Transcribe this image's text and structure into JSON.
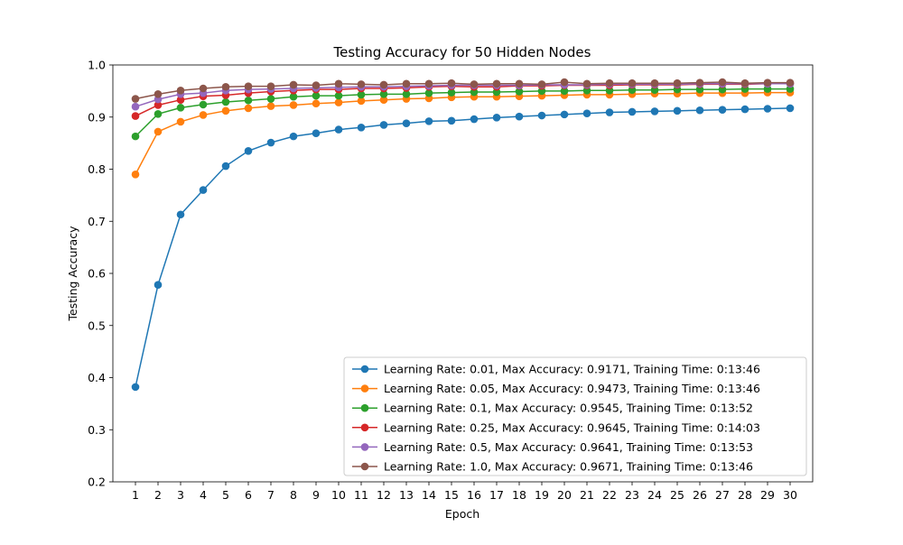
{
  "chart_data": {
    "type": "line",
    "title": "Testing Accuracy for 50 Hidden Nodes",
    "xlabel": "Epoch",
    "ylabel": "Testing Accuracy",
    "xlim": [
      0,
      31
    ],
    "ylim": [
      0.2,
      1.0
    ],
    "x": [
      1,
      2,
      3,
      4,
      5,
      6,
      7,
      8,
      9,
      10,
      11,
      12,
      13,
      14,
      15,
      16,
      17,
      18,
      19,
      20,
      21,
      22,
      23,
      24,
      25,
      26,
      27,
      28,
      29,
      30
    ],
    "x_ticks": [
      "1",
      "2",
      "3",
      "4",
      "5",
      "6",
      "7",
      "8",
      "9",
      "10",
      "11",
      "12",
      "13",
      "14",
      "15",
      "16",
      "17",
      "18",
      "19",
      "20",
      "21",
      "22",
      "23",
      "24",
      "25",
      "26",
      "27",
      "28",
      "29",
      "30"
    ],
    "y_ticks": [
      "0.2",
      "0.3",
      "0.4",
      "0.5",
      "0.6",
      "0.7",
      "0.8",
      "0.9",
      "1.0"
    ],
    "y_tick_values": [
      0.2,
      0.3,
      0.4,
      0.5,
      0.6,
      0.7,
      0.8,
      0.9,
      1.0
    ],
    "grid": false,
    "legend_position": "lower-right",
    "series": [
      {
        "name": "Learning Rate: 0.01, Max Accuracy: 0.9171, Training Time: 0:13:46",
        "color": "#1f77b4",
        "values": [
          0.382,
          0.578,
          0.713,
          0.76,
          0.806,
          0.835,
          0.851,
          0.863,
          0.869,
          0.876,
          0.88,
          0.885,
          0.888,
          0.892,
          0.893,
          0.896,
          0.899,
          0.901,
          0.903,
          0.905,
          0.907,
          0.909,
          0.91,
          0.911,
          0.912,
          0.913,
          0.914,
          0.915,
          0.916,
          0.917
        ]
      },
      {
        "name": "Learning Rate: 0.05, Max Accuracy: 0.9473, Training Time: 0:13:46",
        "color": "#ff7f0e",
        "values": [
          0.79,
          0.872,
          0.891,
          0.904,
          0.912,
          0.917,
          0.921,
          0.923,
          0.926,
          0.928,
          0.931,
          0.933,
          0.935,
          0.936,
          0.938,
          0.939,
          0.939,
          0.94,
          0.941,
          0.942,
          0.943,
          0.943,
          0.944,
          0.945,
          0.945,
          0.946,
          0.946,
          0.946,
          0.947,
          0.947
        ]
      },
      {
        "name": "Learning Rate: 0.1, Max Accuracy: 0.9545, Training Time: 0:13:52",
        "color": "#2ca02c",
        "values": [
          0.863,
          0.906,
          0.918,
          0.924,
          0.929,
          0.932,
          0.935,
          0.939,
          0.941,
          0.941,
          0.943,
          0.944,
          0.944,
          0.946,
          0.947,
          0.948,
          0.948,
          0.949,
          0.95,
          0.95,
          0.951,
          0.951,
          0.952,
          0.952,
          0.953,
          0.953,
          0.953,
          0.954,
          0.954,
          0.954
        ]
      },
      {
        "name": "Learning Rate: 0.25, Max Accuracy: 0.9645, Training Time: 0:14:03",
        "color": "#d62728",
        "values": [
          0.902,
          0.923,
          0.933,
          0.94,
          0.942,
          0.946,
          0.949,
          0.951,
          0.953,
          0.953,
          0.955,
          0.955,
          0.956,
          0.958,
          0.959,
          0.958,
          0.958,
          0.96,
          0.96,
          0.961,
          0.961,
          0.961,
          0.962,
          0.962,
          0.962,
          0.963,
          0.963,
          0.963,
          0.964,
          0.964
        ]
      },
      {
        "name": "Learning Rate: 0.5, Max Accuracy: 0.9641, Training Time: 0:13:53",
        "color": "#9467bd",
        "values": [
          0.92,
          0.934,
          0.944,
          0.946,
          0.951,
          0.953,
          0.954,
          0.955,
          0.956,
          0.957,
          0.958,
          0.958,
          0.959,
          0.96,
          0.961,
          0.961,
          0.961,
          0.961,
          0.962,
          0.962,
          0.962,
          0.963,
          0.963,
          0.963,
          0.963,
          0.964,
          0.964,
          0.964,
          0.964,
          0.964
        ]
      },
      {
        "name": "Learning Rate: 1.0, Max Accuracy: 0.9671, Training Time: 0:13:46",
        "color": "#8c564b",
        "values": [
          0.935,
          0.944,
          0.951,
          0.955,
          0.958,
          0.959,
          0.959,
          0.962,
          0.961,
          0.964,
          0.963,
          0.962,
          0.964,
          0.964,
          0.965,
          0.963,
          0.964,
          0.964,
          0.963,
          0.967,
          0.964,
          0.965,
          0.965,
          0.965,
          0.965,
          0.966,
          0.967,
          0.965,
          0.966,
          0.966
        ]
      }
    ]
  }
}
